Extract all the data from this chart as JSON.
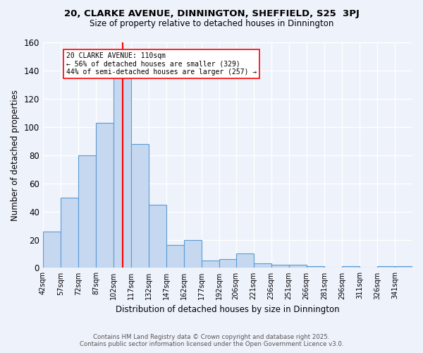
{
  "title1": "20, CLARKE AVENUE, DINNINGTON, SHEFFIELD, S25  3PJ",
  "title2": "Size of property relative to detached houses in Dinnington",
  "xlabel": "Distribution of detached houses by size in Dinnington",
  "ylabel": "Number of detached properties",
  "footer1": "Contains HM Land Registry data © Crown copyright and database right 2025.",
  "footer2": "Contains public sector information licensed under the Open Government Licence v3.0.",
  "bins": [
    42,
    57,
    72,
    87,
    102,
    117,
    132,
    147,
    162,
    177,
    192,
    206,
    221,
    236,
    251,
    266,
    281,
    296,
    311,
    326,
    341
  ],
  "counts": [
    26,
    50,
    80,
    103,
    135,
    88,
    45,
    16,
    20,
    5,
    6,
    10,
    3,
    2,
    2,
    1,
    0,
    1,
    0,
    1,
    1
  ],
  "bar_color": "#c5d8f0",
  "bar_edge_color": "#5b9bd5",
  "red_line_x": 110,
  "ann_line1": "20 CLARKE AVENUE: 110sqm",
  "ann_line2": "← 56% of detached houses are smaller (329)",
  "ann_line3": "44% of semi-detached houses are larger (257) →",
  "ylim": [
    0,
    160
  ],
  "yticks": [
    0,
    20,
    40,
    60,
    80,
    100,
    120,
    140,
    160
  ],
  "background_color": "#eef2fb",
  "grid_color": "#ffffff"
}
